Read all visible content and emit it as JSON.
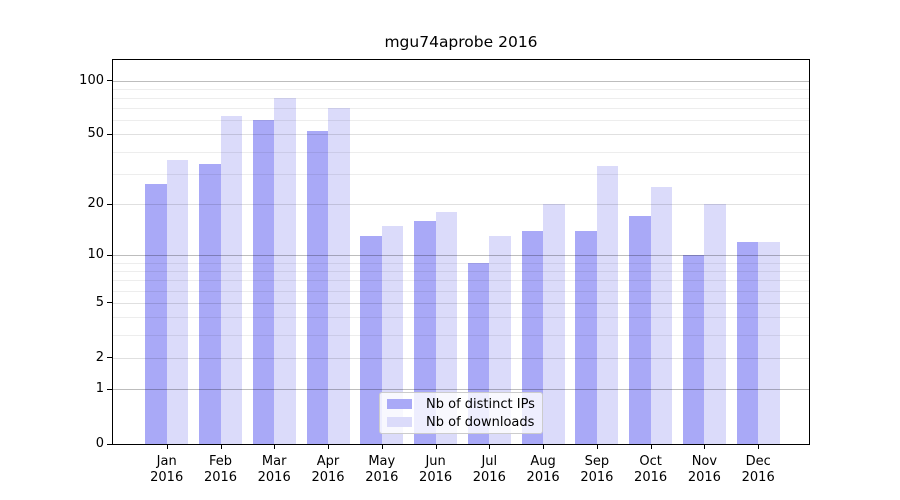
{
  "chart_data": {
    "type": "bar",
    "title": "mgu74aprobe 2016",
    "xlabel": "",
    "ylabel": "",
    "categories": [
      "Jan",
      "Feb",
      "Mar",
      "Apr",
      "May",
      "Jun",
      "Jul",
      "Aug",
      "Sep",
      "Oct",
      "Nov",
      "Dec"
    ],
    "x_year": "2016",
    "series": [
      {
        "name": "Nb of distinct IPs",
        "color": "#a9a9f7",
        "values": [
          26,
          34,
          60,
          52,
          13,
          16,
          9,
          14,
          14,
          17,
          10,
          12
        ]
      },
      {
        "name": "Nb of downloads",
        "color": "#dbdbfa",
        "values": [
          36,
          63,
          80,
          70,
          15,
          18,
          13,
          20,
          33,
          25,
          20,
          12
        ]
      }
    ],
    "y_axis": {
      "scale": "log1p",
      "tick_labels": [
        100,
        50,
        20,
        10,
        5,
        2,
        1,
        0
      ],
      "top_value": 130,
      "gridlines_strong": [
        1,
        10,
        100
      ],
      "gridlines_medium": [
        2,
        5,
        20,
        50
      ],
      "gridlines_minor": [
        3,
        4,
        6,
        7,
        8,
        9,
        30,
        40,
        60,
        70,
        80,
        90
      ]
    },
    "ylim": [
      0,
      130
    ],
    "grid": true,
    "legend_position": "lower center"
  }
}
